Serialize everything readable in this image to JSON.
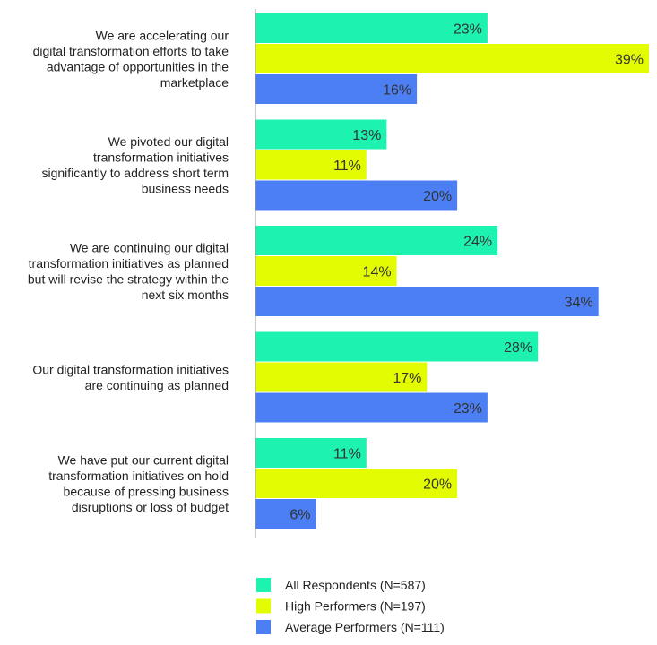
{
  "chart_data": {
    "type": "bar",
    "orientation": "horizontal",
    "categories": [
      "We are accelerating our digital transformation efforts to take advantage of opportunities in the marketplace",
      "We pivoted our digital transformation initiatives significantly to address short term business needs",
      "We are continuing our digital transformation initiatives as planned but will revise the strategy within the next six months",
      "Our digital transformation initiatives are continuing as planned",
      "We have put our current digital transformation initiatives on hold because of pressing business disruptions or loss of budget"
    ],
    "category_lines": [
      [
        "We are accelerating our",
        "digital transformation efforts to take",
        "advantage of opportunities in the",
        "marketplace"
      ],
      [
        "We pivoted our digital",
        "transformation initiatives",
        "significantly to address short term",
        "business needs"
      ],
      [
        "We are continuing our digital",
        "transformation initiatives as planned",
        "but will revise the strategy within the",
        "next six months"
      ],
      [
        "Our digital transformation initiatives",
        "are continuing as planned"
      ],
      [
        "We have put our current digital",
        "transformation initiatives on hold",
        "because of pressing business",
        "disruptions or loss of budget"
      ]
    ],
    "series": [
      {
        "name": "All Respondents (N=587)",
        "color": "#1DF2B0",
        "values": [
          23,
          13,
          24,
          28,
          11
        ],
        "labels": [
          "23%",
          "13%",
          "24%",
          "28%",
          "11%"
        ]
      },
      {
        "name": "High Performers (N=197)",
        "color": "#E3FC02",
        "values": [
          39,
          11,
          14,
          17,
          20
        ],
        "labels": [
          "39%",
          "11%",
          "14%",
          "17%",
          "20%"
        ]
      },
      {
        "name": "Average Performers (N=111)",
        "color": "#4B7FF3",
        "values": [
          16,
          20,
          34,
          23,
          6
        ],
        "labels": [
          "16%",
          "20%",
          "34%",
          "23%",
          "6%"
        ]
      }
    ],
    "xlim": [
      0,
      39
    ],
    "grid": false,
    "legend_position": "bottom"
  }
}
